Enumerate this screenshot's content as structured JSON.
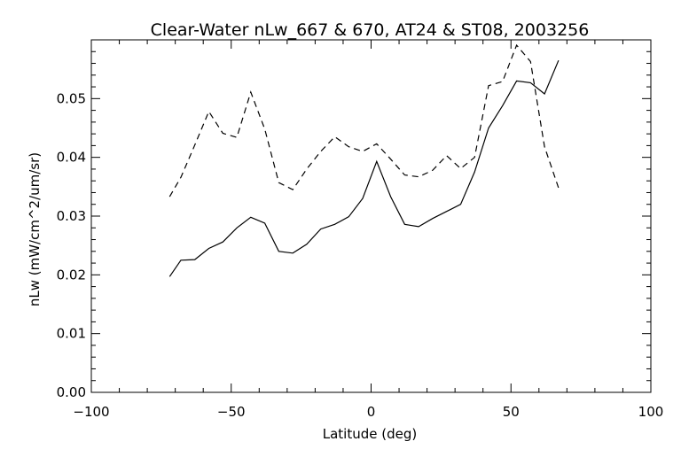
{
  "chart_data": {
    "type": "line",
    "title": "Clear-Water nLw_667 & 670, AT24 & ST08, 2003256",
    "xlabel": "Latitude (deg)",
    "ylabel": "nLw (mW/cm^2/um/sr)",
    "xlim": [
      -100,
      100
    ],
    "ylim": [
      0.0,
      0.06
    ],
    "x_ticks": [
      -100,
      -50,
      0,
      50,
      100
    ],
    "x_tick_labels": [
      "−100",
      "−50",
      "0",
      "50",
      "100"
    ],
    "y_ticks": [
      0.0,
      0.01,
      0.02,
      0.03,
      0.04,
      0.05
    ],
    "y_tick_labels": [
      "0.00",
      "0.01",
      "0.02",
      "0.03",
      "0.04",
      "0.05"
    ],
    "grid": false,
    "legend": "none",
    "series": [
      {
        "style": "solid",
        "color": "#000000",
        "x": [
          -72,
          -68,
          -63,
          -58,
          -53,
          -48,
          -43,
          -38,
          -33,
          -28,
          -23,
          -18,
          -13,
          -8,
          -3,
          2,
          7,
          12,
          17,
          22,
          27,
          32,
          37,
          42,
          47,
          52,
          57,
          62,
          67
        ],
        "y": [
          0.0197,
          0.0225,
          0.0226,
          0.0245,
          0.0256,
          0.028,
          0.0298,
          0.0288,
          0.024,
          0.0237,
          0.0252,
          0.0278,
          0.0286,
          0.0299,
          0.033,
          0.0393,
          0.0333,
          0.0286,
          0.0282,
          0.0296,
          0.0308,
          0.032,
          0.0375,
          0.045,
          0.0488,
          0.053,
          0.0527,
          0.0508,
          0.0565
        ]
      },
      {
        "style": "dashed",
        "color": "#000000",
        "x": [
          -72,
          -68,
          -63,
          -58,
          -53,
          -48,
          -43,
          -38,
          -33,
          -28,
          -23,
          -18,
          -13,
          -8,
          -3,
          2,
          7,
          12,
          17,
          22,
          27,
          32,
          37,
          42,
          47,
          52,
          57,
          62,
          67
        ],
        "y": [
          0.0333,
          0.0366,
          0.0421,
          0.0478,
          0.0441,
          0.0434,
          0.0511,
          0.0448,
          0.0357,
          0.0345,
          0.038,
          0.041,
          0.0435,
          0.0418,
          0.041,
          0.0423,
          0.0397,
          0.037,
          0.0367,
          0.0378,
          0.0403,
          0.0381,
          0.04,
          0.0522,
          0.0529,
          0.0591,
          0.0563,
          0.0418,
          0.0348
        ]
      }
    ]
  }
}
